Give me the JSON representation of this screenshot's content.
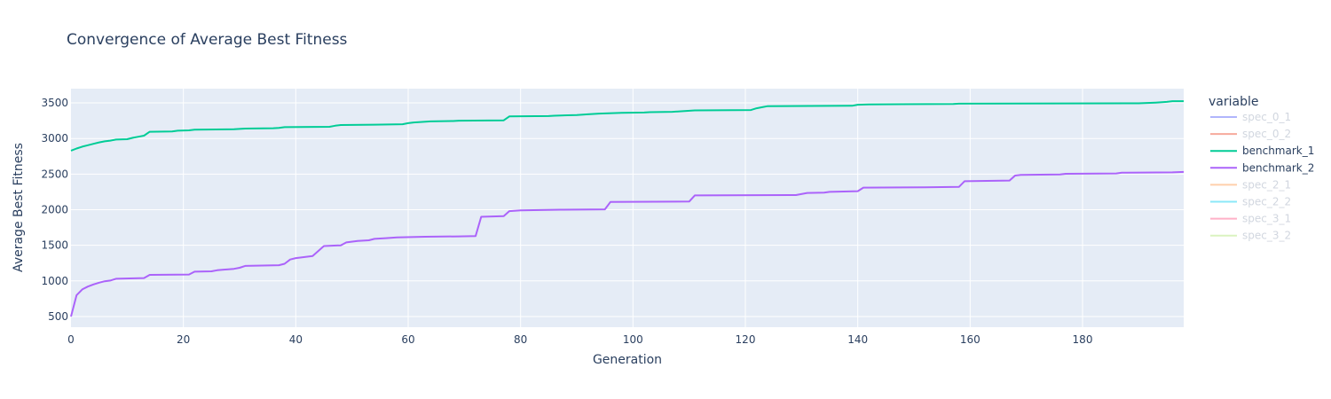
{
  "chart_data": {
    "type": "line",
    "title": "Convergence of Average Best Fitness",
    "xlabel": "Generation",
    "ylabel": "Average Best Fitness",
    "xlim": [
      0,
      198
    ],
    "ylim": [
      350,
      3700
    ],
    "xticks": [
      0,
      20,
      40,
      60,
      80,
      100,
      120,
      140,
      160,
      180
    ],
    "yticks": [
      500,
      1000,
      1500,
      2000,
      2500,
      3000,
      3500
    ],
    "grid": true,
    "legend_title": "variable",
    "legend_position": "right",
    "series": [
      {
        "name": "spec_0_1",
        "color": "#636efa",
        "hidden": true,
        "points": []
      },
      {
        "name": "spec_0_2",
        "color": "#ef553b",
        "hidden": true,
        "points": []
      },
      {
        "name": "benchmark_1",
        "color": "#00cc96",
        "hidden": false,
        "points": [
          [
            0,
            2830
          ],
          [
            1,
            2860
          ],
          [
            2,
            2885
          ],
          [
            3,
            2905
          ],
          [
            4,
            2925
          ],
          [
            5,
            2945
          ],
          [
            6,
            2960
          ],
          [
            7,
            2970
          ],
          [
            8,
            2985
          ],
          [
            10,
            2990
          ],
          [
            11,
            3010
          ],
          [
            12,
            3025
          ],
          [
            13,
            3040
          ],
          [
            14,
            3095
          ],
          [
            18,
            3100
          ],
          [
            19,
            3110
          ],
          [
            21,
            3115
          ],
          [
            22,
            3125
          ],
          [
            29,
            3130
          ],
          [
            31,
            3140
          ],
          [
            36,
            3145
          ],
          [
            37,
            3150
          ],
          [
            38,
            3160
          ],
          [
            46,
            3165
          ],
          [
            47,
            3180
          ],
          [
            48,
            3190
          ],
          [
            54,
            3195
          ],
          [
            59,
            3200
          ],
          [
            60,
            3215
          ],
          [
            61,
            3225
          ],
          [
            64,
            3240
          ],
          [
            68,
            3245
          ],
          [
            69,
            3250
          ],
          [
            77,
            3255
          ],
          [
            78,
            3310
          ],
          [
            85,
            3315
          ],
          [
            86,
            3320
          ],
          [
            90,
            3330
          ],
          [
            92,
            3340
          ],
          [
            93,
            3345
          ],
          [
            94,
            3350
          ],
          [
            98,
            3360
          ],
          [
            102,
            3365
          ],
          [
            103,
            3370
          ],
          [
            107,
            3375
          ],
          [
            111,
            3395
          ],
          [
            121,
            3400
          ],
          [
            122,
            3425
          ],
          [
            123,
            3440
          ],
          [
            124,
            3455
          ],
          [
            139,
            3460
          ],
          [
            140,
            3475
          ],
          [
            142,
            3480
          ],
          [
            157,
            3485
          ],
          [
            158,
            3490
          ],
          [
            190,
            3495
          ],
          [
            193,
            3505
          ],
          [
            195,
            3515
          ],
          [
            196,
            3525
          ],
          [
            198,
            3525
          ]
        ]
      },
      {
        "name": "benchmark_2",
        "color": "#ab63fa",
        "hidden": false,
        "points": [
          [
            0,
            500
          ],
          [
            1,
            800
          ],
          [
            2,
            880
          ],
          [
            3,
            920
          ],
          [
            4,
            950
          ],
          [
            5,
            975
          ],
          [
            6,
            995
          ],
          [
            7,
            1005
          ],
          [
            8,
            1030
          ],
          [
            13,
            1040
          ],
          [
            14,
            1085
          ],
          [
            21,
            1090
          ],
          [
            22,
            1130
          ],
          [
            25,
            1135
          ],
          [
            26,
            1150
          ],
          [
            29,
            1170
          ],
          [
            30,
            1185
          ],
          [
            31,
            1210
          ],
          [
            37,
            1220
          ],
          [
            38,
            1240
          ],
          [
            39,
            1300
          ],
          [
            40,
            1320
          ],
          [
            43,
            1350
          ],
          [
            45,
            1490
          ],
          [
            48,
            1500
          ],
          [
            49,
            1540
          ],
          [
            51,
            1560
          ],
          [
            53,
            1570
          ],
          [
            54,
            1590
          ],
          [
            56,
            1600
          ],
          [
            58,
            1610
          ],
          [
            63,
            1620
          ],
          [
            69,
            1625
          ],
          [
            72,
            1630
          ],
          [
            73,
            1900
          ],
          [
            77,
            1910
          ],
          [
            78,
            1980
          ],
          [
            80,
            1990
          ],
          [
            87,
            2000
          ],
          [
            95,
            2005
          ],
          [
            96,
            2110
          ],
          [
            110,
            2115
          ],
          [
            111,
            2200
          ],
          [
            129,
            2205
          ],
          [
            131,
            2235
          ],
          [
            134,
            2240
          ],
          [
            135,
            2250
          ],
          [
            140,
            2260
          ],
          [
            141,
            2310
          ],
          [
            152,
            2315
          ],
          [
            158,
            2320
          ],
          [
            159,
            2400
          ],
          [
            167,
            2410
          ],
          [
            168,
            2480
          ],
          [
            169,
            2490
          ],
          [
            176,
            2495
          ],
          [
            177,
            2505
          ],
          [
            186,
            2510
          ],
          [
            187,
            2520
          ],
          [
            196,
            2525
          ],
          [
            198,
            2530
          ]
        ]
      },
      {
        "name": "spec_2_1",
        "color": "#ffa15a",
        "hidden": true,
        "points": []
      },
      {
        "name": "spec_2_2",
        "color": "#19d3f3",
        "hidden": true,
        "points": []
      },
      {
        "name": "spec_3_1",
        "color": "#ff6692",
        "hidden": true,
        "points": []
      },
      {
        "name": "spec_3_2",
        "color": "#b6e880",
        "hidden": true,
        "points": []
      }
    ]
  }
}
